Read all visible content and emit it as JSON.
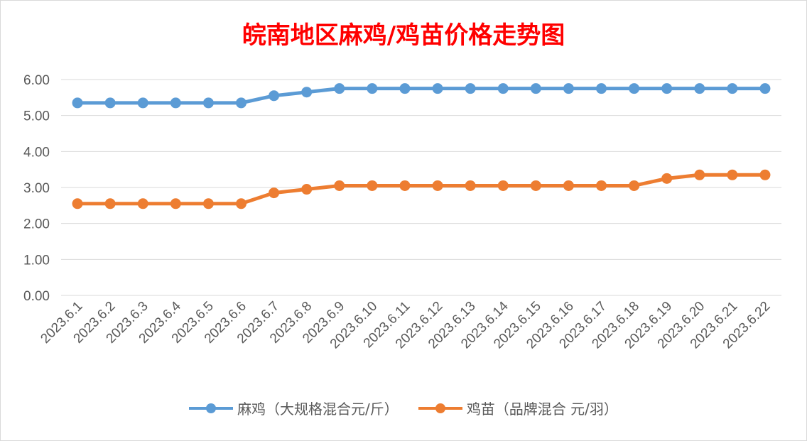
{
  "chart_data": {
    "type": "line",
    "title": "皖南地区麻鸡/鸡苗价格走势图",
    "categories": [
      "2023.6.1",
      "2023.6.2",
      "2023.6.3",
      "2023.6.4",
      "2023.6.5",
      "2023.6.6",
      "2023.6.7",
      "2023.6.8",
      "2023.6.9",
      "2023.6.10",
      "2023.6.11",
      "2023.6.12",
      "2023.6.13",
      "2023.6.14",
      "2023.6.15",
      "2023.6.16",
      "2023.6.17",
      "2023.6.18",
      "2023.6.19",
      "2023.6.20",
      "2023.6.21",
      "2023.6.22"
    ],
    "series": [
      {
        "name": "麻鸡（大规格混合元/斤）",
        "color": "#5b9bd5",
        "values": [
          5.35,
          5.35,
          5.35,
          5.35,
          5.35,
          5.35,
          5.55,
          5.65,
          5.75,
          5.75,
          5.75,
          5.75,
          5.75,
          5.75,
          5.75,
          5.75,
          5.75,
          5.75,
          5.75,
          5.75,
          5.75,
          5.75
        ]
      },
      {
        "name": "鸡苗（品牌混合 元/羽）",
        "color": "#ed7d31",
        "values": [
          2.55,
          2.55,
          2.55,
          2.55,
          2.55,
          2.55,
          2.85,
          2.95,
          3.05,
          3.05,
          3.05,
          3.05,
          3.05,
          3.05,
          3.05,
          3.05,
          3.05,
          3.05,
          3.25,
          3.35,
          3.35,
          3.35
        ]
      }
    ],
    "yticks": [
      "0.00",
      "1.00",
      "2.00",
      "3.00",
      "4.00",
      "5.00",
      "6.00"
    ],
    "ylim": [
      0,
      6
    ],
    "grid": true,
    "legend_position": "bottom",
    "title_color": "#ff0000"
  }
}
